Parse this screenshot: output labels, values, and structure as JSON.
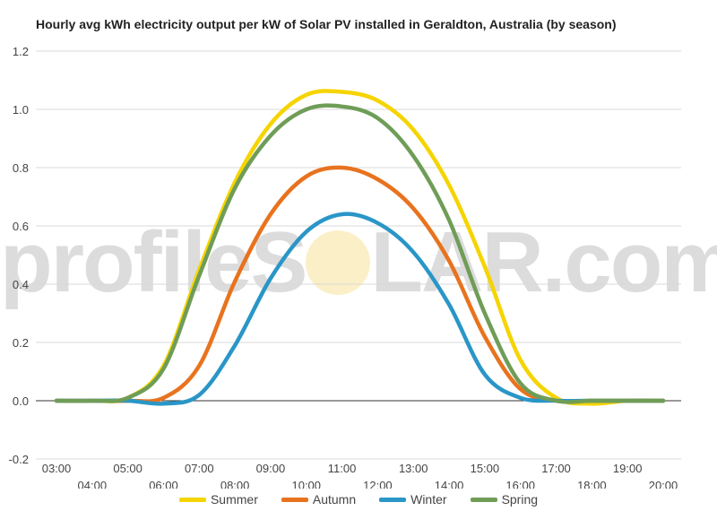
{
  "chart_data": {
    "type": "line",
    "title": "Hourly avg kWh electricity output per kW of Solar PV installed in Geraldton, Australia (by season)",
    "x": [
      "03:00",
      "04:00",
      "05:00",
      "06:00",
      "07:00",
      "08:00",
      "09:00",
      "10:00",
      "11:00",
      "12:00",
      "13:00",
      "14:00",
      "15:00",
      "16:00",
      "17:00",
      "18:00",
      "19:00",
      "20:00"
    ],
    "ylim": [
      -0.2,
      1.2
    ],
    "yticks": [
      "-0.2",
      "0.0",
      "0.2",
      "0.4",
      "0.6",
      "0.8",
      "1.0",
      "1.2"
    ],
    "grid": true,
    "legend_position": "bottom",
    "series": [
      {
        "name": "Summer",
        "color": "#f5d400",
        "values": [
          0,
          0,
          0.01,
          0.12,
          0.45,
          0.75,
          0.95,
          1.05,
          1.06,
          1.03,
          0.93,
          0.74,
          0.46,
          0.14,
          0.01,
          -0.01,
          0,
          0
        ]
      },
      {
        "name": "Autumn",
        "color": "#e8731e",
        "values": [
          0,
          0,
          0,
          0.01,
          0.12,
          0.41,
          0.64,
          0.77,
          0.8,
          0.76,
          0.66,
          0.48,
          0.22,
          0.04,
          0,
          0,
          0,
          0
        ]
      },
      {
        "name": "Winter",
        "color": "#2a96c7",
        "values": [
          0,
          0,
          0,
          -0.01,
          0.02,
          0.19,
          0.42,
          0.58,
          0.64,
          0.61,
          0.51,
          0.33,
          0.09,
          0.01,
          0,
          0,
          0,
          0
        ]
      },
      {
        "name": "Spring",
        "color": "#6f9d57",
        "values": [
          0,
          0,
          0.01,
          0.11,
          0.43,
          0.73,
          0.91,
          1.0,
          1.01,
          0.97,
          0.84,
          0.62,
          0.3,
          0.06,
          0,
          0,
          0,
          0
        ]
      }
    ]
  },
  "watermark": {
    "left": "profileS",
    "right": "LAR.com"
  }
}
